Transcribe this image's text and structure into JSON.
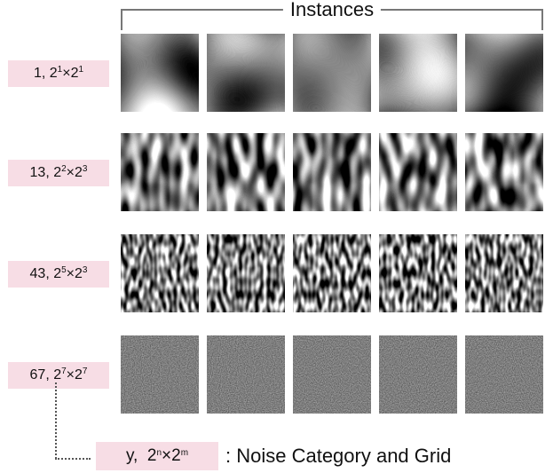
{
  "header": {
    "title": "Instances"
  },
  "rows": [
    {
      "category": "1",
      "n": "1",
      "m": "1",
      "tiles": 5
    },
    {
      "category": "13",
      "n": "2",
      "m": "3",
      "tiles": 5
    },
    {
      "category": "43",
      "n": "5",
      "m": "3",
      "tiles": 5
    },
    {
      "category": "67",
      "n": "7",
      "m": "7",
      "tiles": 5
    }
  ],
  "legend": {
    "category": "y",
    "n": "n",
    "m": "m",
    "text": ": Noise Category and Grid"
  }
}
